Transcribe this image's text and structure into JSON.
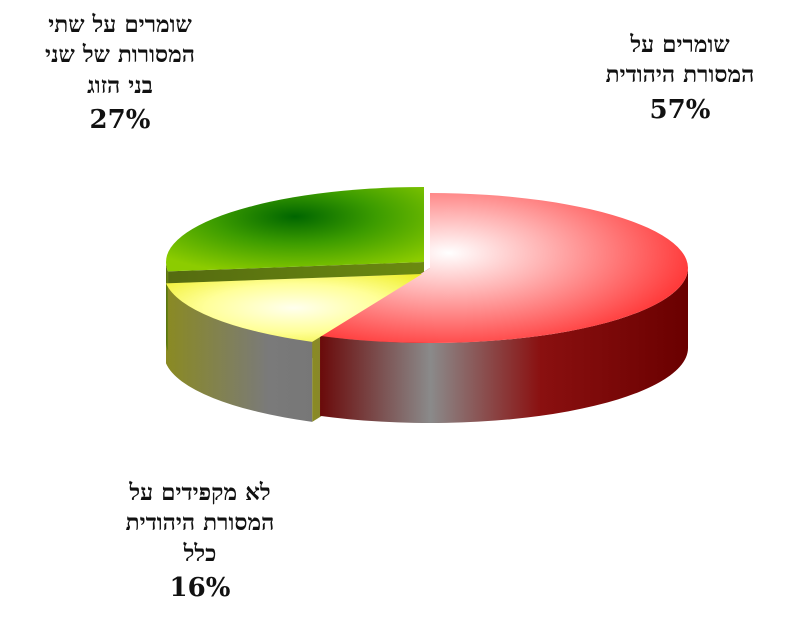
{
  "chart_data": {
    "type": "pie",
    "style": "3d-exploded",
    "legend": "none",
    "slices": [
      {
        "label_lines": [
          "שומרים על",
          "המסורת היהודית"
        ],
        "value": 57,
        "pct_label": "57%",
        "color": "#ff1f1f",
        "side_color": "#7a0a0a"
      },
      {
        "label_lines": [
          "לא מקפידים על",
          "המסורת היהודית",
          "כלל"
        ],
        "value": 16,
        "pct_label": "16%",
        "color": "#ffff33",
        "side_color": "#707a22"
      },
      {
        "label_lines": [
          "שומרים על שתי",
          "המסורות של שני",
          "בני הזוג"
        ],
        "value": 27,
        "pct_label": "27%",
        "color": "#6cbf00",
        "side_color": "#4f7f10"
      }
    ]
  }
}
